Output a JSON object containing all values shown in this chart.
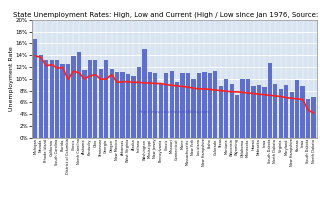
{
  "title": "State Unemployment Rates: High, Low and Current (High / Low since Jan 1976, Source: BLS)",
  "ylabel": "Unemployment Rate",
  "watermark": "http://www.calculatedriskblog.com/",
  "ylim": [
    0,
    0.2
  ],
  "yticks": [
    0.0,
    0.02,
    0.04,
    0.06,
    0.08,
    0.1,
    0.12,
    0.14,
    0.16,
    0.18,
    0.2
  ],
  "ytick_labels": [
    "0%",
    "2%",
    "4%",
    "6%",
    "8%",
    "10%",
    "12%",
    "14%",
    "16%",
    "18%",
    "20%"
  ],
  "states": [
    "Michigan",
    "Nevada",
    "Rhode Island",
    "California",
    "South Carolina",
    "Florida",
    "District of Columbia",
    "Illinois",
    "North Carolina",
    "Alabama",
    "Kentucky",
    "Ohio",
    "Tennessee",
    "Georgia",
    "Oregon",
    "New Mexico",
    "Arkansas",
    "West Virginia",
    "Alaska",
    "Indiana",
    "Washington",
    "Mississippi",
    "New Jersey",
    "Pennsylvania",
    "Illinois",
    "Missouri",
    "Connecticut",
    "Maine",
    "Massachusetts",
    "New York",
    "Louisiana",
    "New Hampshire",
    "Idaho",
    "Colorado",
    "Texas",
    "Montana",
    "Wisconsin",
    "Wyoming",
    "Oklahoma",
    "Minnesota",
    "Hawaii",
    "Nebraska",
    "Iowa",
    "South Dakota",
    "North Dakota",
    "Virginia",
    "Maryland",
    "New Hampshire",
    "Kansas",
    "Iowa",
    "South Dakota",
    "North Dakota"
  ],
  "high": [
    0.168,
    0.14,
    0.132,
    0.131,
    0.131,
    0.125,
    0.125,
    0.138,
    0.145,
    0.115,
    0.132,
    0.132,
    0.116,
    0.132,
    0.116,
    0.112,
    0.111,
    0.108,
    0.105,
    0.12,
    0.15,
    0.112,
    0.109,
    0.092,
    0.109,
    0.113,
    0.095,
    0.11,
    0.109,
    0.099,
    0.109,
    0.112,
    0.11,
    0.113,
    0.088,
    0.1,
    0.092,
    0.073,
    0.1,
    0.1,
    0.088,
    0.09,
    0.086,
    0.126,
    0.092,
    0.082,
    0.09,
    0.077,
    0.098,
    0.088,
    0.065,
    0.07
  ],
  "current": [
    0.139,
    0.136,
    0.122,
    0.124,
    0.118,
    0.119,
    0.099,
    0.113,
    0.11,
    0.1,
    0.105,
    0.107,
    0.099,
    0.1,
    0.107,
    0.094,
    0.095,
    0.095,
    0.094,
    0.094,
    0.093,
    0.093,
    0.092,
    0.092,
    0.09,
    0.089,
    0.088,
    0.087,
    0.086,
    0.084,
    0.083,
    0.083,
    0.082,
    0.081,
    0.08,
    0.079,
    0.078,
    0.078,
    0.077,
    0.076,
    0.075,
    0.074,
    0.073,
    0.072,
    0.071,
    0.07,
    0.068,
    0.067,
    0.066,
    0.065,
    0.047,
    0.042
  ],
  "bar_color": "#6070C8",
  "current_color": "#FF2020",
  "bg_color": "#D8E4F0",
  "title_fontsize": 5.0,
  "label_fontsize": 4.5,
  "tick_fontsize": 4.0
}
